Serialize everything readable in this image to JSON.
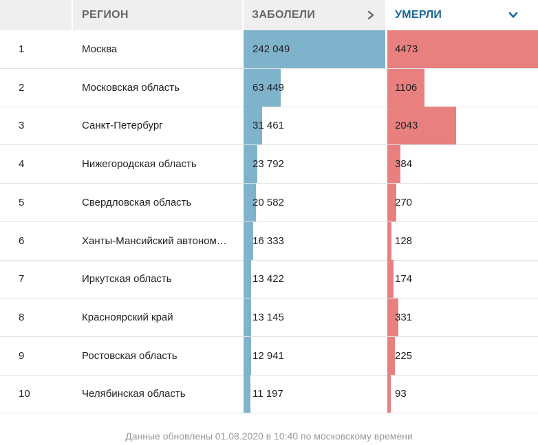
{
  "header": {
    "region": "РЕГИОН",
    "sick": "ЗАБОЛЕЛИ",
    "dead": "УМЕРЛИ"
  },
  "colors": {
    "sick_bar": "#7fb3cc",
    "dead_bar": "#e88080",
    "active_header": "#1a6496"
  },
  "icons": {
    "sick_sort": "chevron-right-icon",
    "dead_sort": "chevron-down-icon"
  },
  "chart_data": {
    "type": "table",
    "columns": [
      "",
      "РЕГИОН",
      "ЗАБОЛЕЛИ",
      "УМЕРЛИ"
    ],
    "rows": [
      {
        "rank": "1",
        "region": "Москва",
        "sick": 242049,
        "sick_label": "242 049",
        "dead": 4473,
        "dead_label": "4473"
      },
      {
        "rank": "2",
        "region": "Московская область",
        "sick": 63449,
        "sick_label": "63 449",
        "dead": 1106,
        "dead_label": "1106"
      },
      {
        "rank": "3",
        "region": "Санкт-Петербург",
        "sick": 31461,
        "sick_label": "31 461",
        "dead": 2043,
        "dead_label": "2043"
      },
      {
        "rank": "4",
        "region": "Нижегородская область",
        "sick": 23792,
        "sick_label": "23 792",
        "dead": 384,
        "dead_label": "384"
      },
      {
        "rank": "5",
        "region": "Свердловская область",
        "sick": 20582,
        "sick_label": "20 582",
        "dead": 270,
        "dead_label": "270"
      },
      {
        "rank": "6",
        "region": "Ханты-Мансийский автоном…",
        "sick": 16333,
        "sick_label": "16 333",
        "dead": 128,
        "dead_label": "128"
      },
      {
        "rank": "7",
        "region": "Иркутская область",
        "sick": 13422,
        "sick_label": "13 422",
        "dead": 174,
        "dead_label": "174"
      },
      {
        "rank": "8",
        "region": "Красноярский край",
        "sick": 13145,
        "sick_label": "13 145",
        "dead": 331,
        "dead_label": "331"
      },
      {
        "rank": "9",
        "region": "Ростовская область",
        "sick": 12941,
        "sick_label": "12 941",
        "dead": 225,
        "dead_label": "225"
      },
      {
        "rank": "10",
        "region": "Челябинская область",
        "sick": 11197,
        "sick_label": "11 197",
        "dead": 93,
        "dead_label": "93"
      }
    ],
    "sort_column": "УМЕРЛИ"
  },
  "footer": {
    "note": "Данные обновлены 01.08.2020 в 10:40 по московскому времени"
  }
}
